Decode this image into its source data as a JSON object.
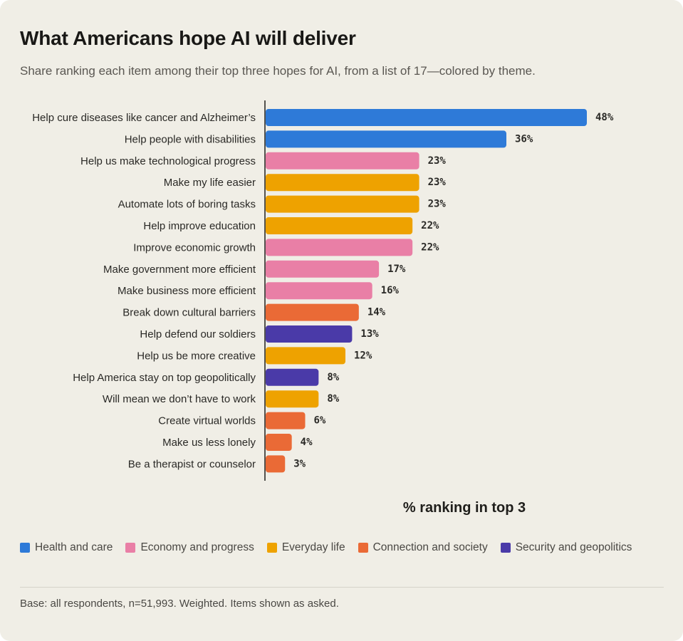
{
  "title": "What Americans hope AI will deliver",
  "subtitle": "Share ranking each item among their top three hopes for AI, from a list of 17—colored by theme.",
  "note": "Base: all respondents, n=51,993. Weighted. Items shown as asked.",
  "themes": [
    {
      "key": "health",
      "label": "Health and care",
      "color": "#2e7ad8"
    },
    {
      "key": "economy",
      "label": "Economy and progress",
      "color": "#e97fa6"
    },
    {
      "key": "everyday",
      "label": "Everyday life",
      "color": "#eea200"
    },
    {
      "key": "connection",
      "label": "Connection and society",
      "color": "#ea6a36"
    },
    {
      "key": "security",
      "label": "Security and geopolitics",
      "color": "#4a3aa8"
    }
  ],
  "chart_data": {
    "type": "bar",
    "orientation": "horizontal",
    "xlabel": "% ranking in top 3",
    "value_suffix": "%",
    "xlim": [
      0,
      48
    ],
    "legend_position": "bottom",
    "grid": false,
    "categories": [
      "Help cure diseases like cancer and Alzheimer’s",
      "Help people with disabilities",
      "Help us make technological progress",
      "Make my life easier",
      "Automate lots of boring tasks",
      "Help improve education",
      "Improve economic growth",
      "Make government more efficient",
      "Make business more efficient",
      "Break down cultural barriers",
      "Help defend our soldiers",
      "Help us be more creative",
      "Help America stay on top geopolitically",
      "Will mean we don’t have to work",
      "Create virtual worlds",
      "Make us less lonely",
      "Be a therapist or counselor"
    ],
    "values": [
      48,
      36,
      23,
      23,
      23,
      22,
      22,
      17,
      16,
      14,
      13,
      12,
      8,
      8,
      6,
      4,
      3
    ],
    "themes": [
      "health",
      "health",
      "economy",
      "everyday",
      "everyday",
      "everyday",
      "economy",
      "economy",
      "economy",
      "connection",
      "security",
      "everyday",
      "security",
      "everyday",
      "connection",
      "connection",
      "connection"
    ]
  }
}
